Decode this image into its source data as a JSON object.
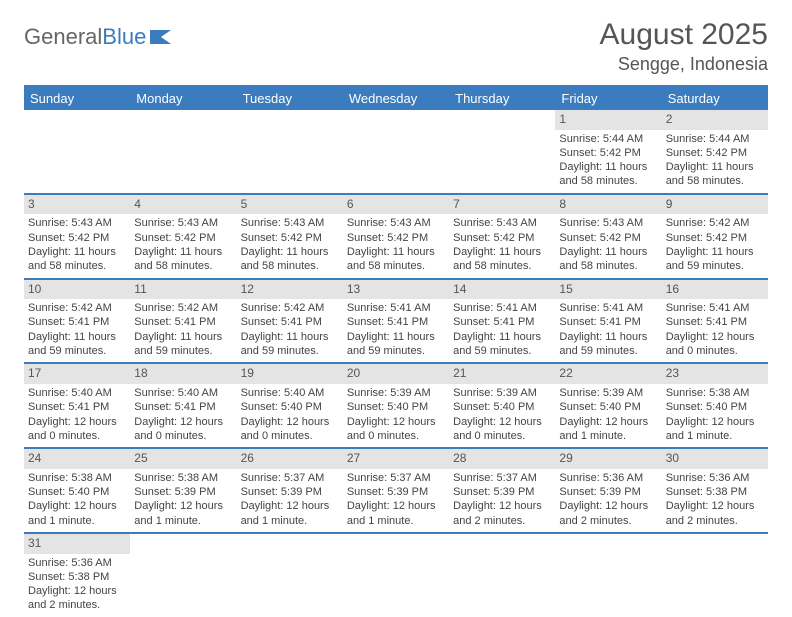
{
  "logo": {
    "text_a": "General",
    "text_b": "Blue"
  },
  "title": "August 2025",
  "location": "Sengge, Indonesia",
  "colors": {
    "accent": "#3b7cbf",
    "gray_bar": "#e4e4e4",
    "text": "#444444",
    "heading": "#555555"
  },
  "day_headers": [
    "Sunday",
    "Monday",
    "Tuesday",
    "Wednesday",
    "Thursday",
    "Friday",
    "Saturday"
  ],
  "weeks": [
    [
      null,
      null,
      null,
      null,
      null,
      {
        "n": "1",
        "sr": "Sunrise: 5:44 AM",
        "ss": "Sunset: 5:42 PM",
        "d1": "Daylight: 11 hours",
        "d2": "and 58 minutes."
      },
      {
        "n": "2",
        "sr": "Sunrise: 5:44 AM",
        "ss": "Sunset: 5:42 PM",
        "d1": "Daylight: 11 hours",
        "d2": "and 58 minutes."
      }
    ],
    [
      {
        "n": "3",
        "sr": "Sunrise: 5:43 AM",
        "ss": "Sunset: 5:42 PM",
        "d1": "Daylight: 11 hours",
        "d2": "and 58 minutes."
      },
      {
        "n": "4",
        "sr": "Sunrise: 5:43 AM",
        "ss": "Sunset: 5:42 PM",
        "d1": "Daylight: 11 hours",
        "d2": "and 58 minutes."
      },
      {
        "n": "5",
        "sr": "Sunrise: 5:43 AM",
        "ss": "Sunset: 5:42 PM",
        "d1": "Daylight: 11 hours",
        "d2": "and 58 minutes."
      },
      {
        "n": "6",
        "sr": "Sunrise: 5:43 AM",
        "ss": "Sunset: 5:42 PM",
        "d1": "Daylight: 11 hours",
        "d2": "and 58 minutes."
      },
      {
        "n": "7",
        "sr": "Sunrise: 5:43 AM",
        "ss": "Sunset: 5:42 PM",
        "d1": "Daylight: 11 hours",
        "d2": "and 58 minutes."
      },
      {
        "n": "8",
        "sr": "Sunrise: 5:43 AM",
        "ss": "Sunset: 5:42 PM",
        "d1": "Daylight: 11 hours",
        "d2": "and 58 minutes."
      },
      {
        "n": "9",
        "sr": "Sunrise: 5:42 AM",
        "ss": "Sunset: 5:42 PM",
        "d1": "Daylight: 11 hours",
        "d2": "and 59 minutes."
      }
    ],
    [
      {
        "n": "10",
        "sr": "Sunrise: 5:42 AM",
        "ss": "Sunset: 5:41 PM",
        "d1": "Daylight: 11 hours",
        "d2": "and 59 minutes."
      },
      {
        "n": "11",
        "sr": "Sunrise: 5:42 AM",
        "ss": "Sunset: 5:41 PM",
        "d1": "Daylight: 11 hours",
        "d2": "and 59 minutes."
      },
      {
        "n": "12",
        "sr": "Sunrise: 5:42 AM",
        "ss": "Sunset: 5:41 PM",
        "d1": "Daylight: 11 hours",
        "d2": "and 59 minutes."
      },
      {
        "n": "13",
        "sr": "Sunrise: 5:41 AM",
        "ss": "Sunset: 5:41 PM",
        "d1": "Daylight: 11 hours",
        "d2": "and 59 minutes."
      },
      {
        "n": "14",
        "sr": "Sunrise: 5:41 AM",
        "ss": "Sunset: 5:41 PM",
        "d1": "Daylight: 11 hours",
        "d2": "and 59 minutes."
      },
      {
        "n": "15",
        "sr": "Sunrise: 5:41 AM",
        "ss": "Sunset: 5:41 PM",
        "d1": "Daylight: 11 hours",
        "d2": "and 59 minutes."
      },
      {
        "n": "16",
        "sr": "Sunrise: 5:41 AM",
        "ss": "Sunset: 5:41 PM",
        "d1": "Daylight: 12 hours",
        "d2": "and 0 minutes."
      }
    ],
    [
      {
        "n": "17",
        "sr": "Sunrise: 5:40 AM",
        "ss": "Sunset: 5:41 PM",
        "d1": "Daylight: 12 hours",
        "d2": "and 0 minutes."
      },
      {
        "n": "18",
        "sr": "Sunrise: 5:40 AM",
        "ss": "Sunset: 5:41 PM",
        "d1": "Daylight: 12 hours",
        "d2": "and 0 minutes."
      },
      {
        "n": "19",
        "sr": "Sunrise: 5:40 AM",
        "ss": "Sunset: 5:40 PM",
        "d1": "Daylight: 12 hours",
        "d2": "and 0 minutes."
      },
      {
        "n": "20",
        "sr": "Sunrise: 5:39 AM",
        "ss": "Sunset: 5:40 PM",
        "d1": "Daylight: 12 hours",
        "d2": "and 0 minutes."
      },
      {
        "n": "21",
        "sr": "Sunrise: 5:39 AM",
        "ss": "Sunset: 5:40 PM",
        "d1": "Daylight: 12 hours",
        "d2": "and 0 minutes."
      },
      {
        "n": "22",
        "sr": "Sunrise: 5:39 AM",
        "ss": "Sunset: 5:40 PM",
        "d1": "Daylight: 12 hours",
        "d2": "and 1 minute."
      },
      {
        "n": "23",
        "sr": "Sunrise: 5:38 AM",
        "ss": "Sunset: 5:40 PM",
        "d1": "Daylight: 12 hours",
        "d2": "and 1 minute."
      }
    ],
    [
      {
        "n": "24",
        "sr": "Sunrise: 5:38 AM",
        "ss": "Sunset: 5:40 PM",
        "d1": "Daylight: 12 hours",
        "d2": "and 1 minute."
      },
      {
        "n": "25",
        "sr": "Sunrise: 5:38 AM",
        "ss": "Sunset: 5:39 PM",
        "d1": "Daylight: 12 hours",
        "d2": "and 1 minute."
      },
      {
        "n": "26",
        "sr": "Sunrise: 5:37 AM",
        "ss": "Sunset: 5:39 PM",
        "d1": "Daylight: 12 hours",
        "d2": "and 1 minute."
      },
      {
        "n": "27",
        "sr": "Sunrise: 5:37 AM",
        "ss": "Sunset: 5:39 PM",
        "d1": "Daylight: 12 hours",
        "d2": "and 1 minute."
      },
      {
        "n": "28",
        "sr": "Sunrise: 5:37 AM",
        "ss": "Sunset: 5:39 PM",
        "d1": "Daylight: 12 hours",
        "d2": "and 2 minutes."
      },
      {
        "n": "29",
        "sr": "Sunrise: 5:36 AM",
        "ss": "Sunset: 5:39 PM",
        "d1": "Daylight: 12 hours",
        "d2": "and 2 minutes."
      },
      {
        "n": "30",
        "sr": "Sunrise: 5:36 AM",
        "ss": "Sunset: 5:38 PM",
        "d1": "Daylight: 12 hours",
        "d2": "and 2 minutes."
      }
    ],
    [
      {
        "n": "31",
        "sr": "Sunrise: 5:36 AM",
        "ss": "Sunset: 5:38 PM",
        "d1": "Daylight: 12 hours",
        "d2": "and 2 minutes."
      },
      null,
      null,
      null,
      null,
      null,
      null
    ]
  ]
}
